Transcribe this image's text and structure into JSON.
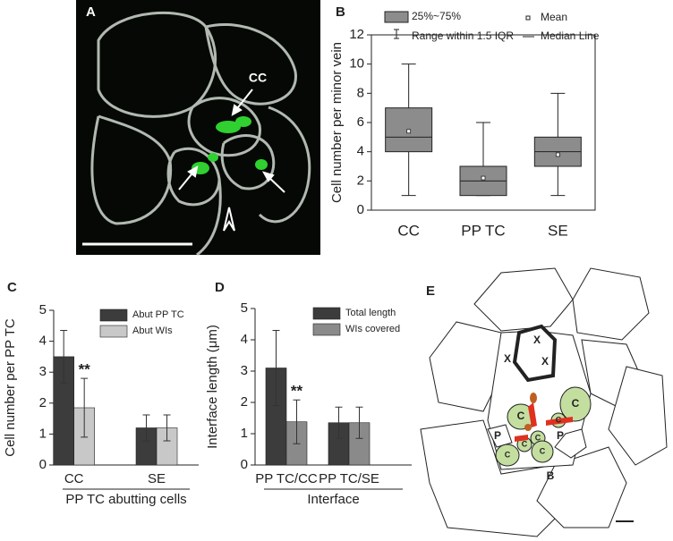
{
  "micrograph": {
    "label": "A",
    "annotation": "CC"
  },
  "chart_data": [
    {
      "type": "box",
      "panel_label": "B",
      "ylabel": "Cell number per minor vein",
      "categories": [
        "CC",
        "PP TC",
        "SE"
      ],
      "boxes": [
        {
          "min": 1,
          "q1": 4,
          "median": 5,
          "q3": 7,
          "max": 10,
          "mean": 5.4
        },
        {
          "min": 1,
          "q1": 1,
          "median": 2,
          "q3": 3,
          "max": 6,
          "mean": 2.2
        },
        {
          "min": 1,
          "q1": 3,
          "median": 4,
          "q3": 5,
          "max": 8,
          "mean": 3.8
        }
      ],
      "color": "#8c8c8c",
      "legend": [
        "25%~75%",
        "Range within 1.5 IQR",
        "Mean",
        "Median Line"
      ],
      "ylim": [
        0,
        12
      ],
      "yticks": [
        0,
        2,
        4,
        6,
        8,
        10,
        12
      ]
    },
    {
      "type": "bar",
      "panel_label": "C",
      "ylabel": "Cell number per PP TC",
      "xlabel": "PP TC abutting cells",
      "categories": [
        "CC",
        "SE"
      ],
      "series": [
        {
          "name": "Abut PP TC",
          "color": "#3c3c3c",
          "values": [
            3.5,
            1.2
          ],
          "errors": [
            0.85,
            0.42
          ]
        },
        {
          "name": "Abut WIs",
          "color": "#c8c8c8",
          "values": [
            1.85,
            1.2
          ],
          "errors": [
            0.95,
            0.42
          ]
        }
      ],
      "annotation": "**",
      "ylim": [
        0,
        5
      ],
      "yticks": [
        0,
        1,
        2,
        3,
        4,
        5
      ]
    },
    {
      "type": "bar",
      "panel_label": "D",
      "ylabel": "Interface length (μm)",
      "xlabel": "Interface",
      "categories": [
        "PP TC/CC",
        "PP TC/SE"
      ],
      "series": [
        {
          "name": "Total length",
          "color": "#3c3c3c",
          "values": [
            3.1,
            1.35
          ],
          "errors": [
            1.2,
            0.5
          ]
        },
        {
          "name": "WIs covered",
          "color": "#8a8a8a",
          "values": [
            1.38,
            1.35
          ],
          "errors": [
            0.7,
            0.5
          ]
        }
      ],
      "annotation": "**",
      "ylim": [
        0,
        5
      ],
      "yticks": [
        0,
        1,
        2,
        3,
        4,
        5
      ]
    }
  ],
  "diagram": {
    "label": "E",
    "cells": [
      "X",
      "X",
      "X",
      "C",
      "C",
      "C",
      "C",
      "C",
      "C",
      "C",
      "P",
      "P",
      "B"
    ]
  }
}
